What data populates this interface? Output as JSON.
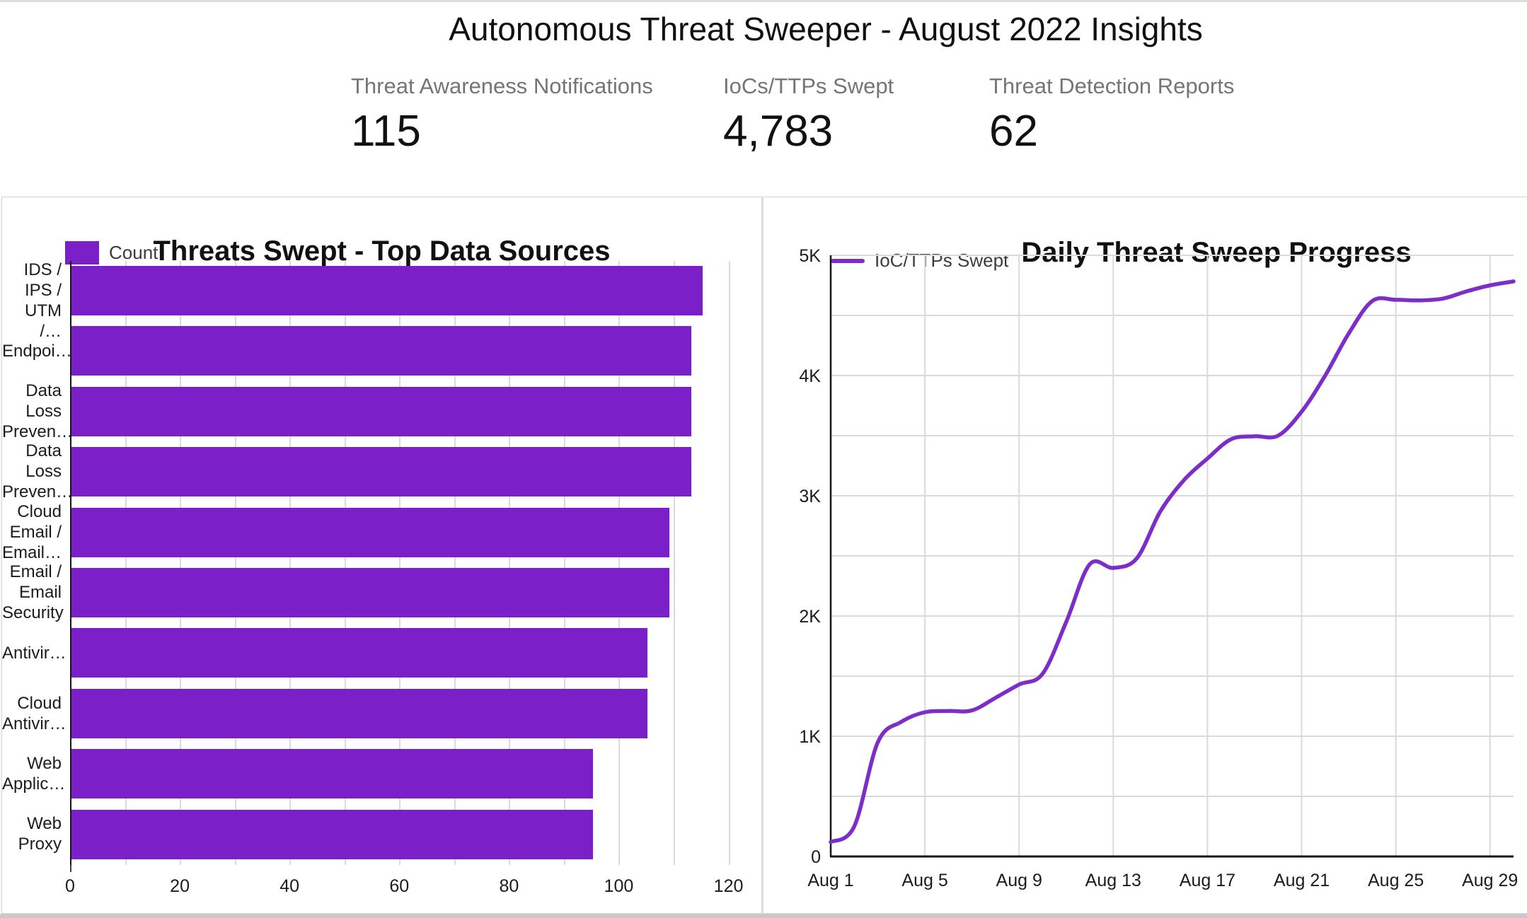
{
  "page": {
    "title": "Autonomous Threat Sweeper - August 2022 Insights"
  },
  "kpis": [
    {
      "label": "Threat Awareness Notifications",
      "value": "115"
    },
    {
      "label": "IoCs/TTPs Swept",
      "value": "4,783"
    },
    {
      "label": "Threat Detection Reports",
      "value": "62"
    }
  ],
  "colors": {
    "bar": "#7B1FC8",
    "line": "#7D2EC9",
    "grid": "#dadada",
    "axis": "#161616",
    "tick_label": "#1c1c1c",
    "kpi_label": "#757575",
    "card_border": "#d6d6d6",
    "top_strip": "#dcdcdc",
    "bottom_strip": "#c9c9c9"
  },
  "chart_data": [
    {
      "type": "bar",
      "orientation": "horizontal",
      "title": "Threats Swept - Top Data Sources",
      "legend": "Count",
      "color": "#7B1FC8",
      "grid": "on",
      "grid_step": 10,
      "x_axis_max": 123.8,
      "x_tick_labels": [
        "0",
        "20",
        "40",
        "60",
        "80",
        "100",
        "120"
      ],
      "x_tick_values": [
        0,
        20,
        40,
        60,
        80,
        100,
        120
      ],
      "categories": [
        "IDS / IPS / UTM /…",
        "Endpoi…",
        "Data Loss Preven…",
        "Data Loss Preven…",
        "Cloud Email / Email…",
        "Email / Email Security",
        "Antivir…",
        "Cloud Antivir…",
        "Web Applic…",
        "Web Proxy"
      ],
      "category_label_lines": [
        [
          "IDS /",
          "IPS /",
          "UTM /…"
        ],
        [
          "Endpoi…"
        ],
        [
          "Data",
          "Loss",
          "Preven…"
        ],
        [
          "Data",
          "Loss",
          "Preven…"
        ],
        [
          "Cloud",
          "Email /",
          "Email…"
        ],
        [
          "Email /",
          "Email",
          "Security"
        ],
        [
          "Antivir…"
        ],
        [
          "Cloud",
          "Antivir…"
        ],
        [
          "Web",
          "Applic…"
        ],
        [
          "Web",
          "Proxy"
        ]
      ],
      "values": [
        115,
        113,
        113,
        113,
        109,
        109,
        105,
        105,
        95,
        95
      ]
    },
    {
      "type": "line",
      "title": "Daily Threat Sweep Progress",
      "legend": "IoC/TTPs Swept",
      "color": "#7D2EC9",
      "grid": "on",
      "smooth": true,
      "ylim": [
        0,
        5000
      ],
      "y_grid_step": 500,
      "y_tick_labels": [
        "0",
        "1K",
        "2K",
        "3K",
        "4K",
        "5K"
      ],
      "y_tick_values": [
        0,
        1000,
        2000,
        3000,
        4000,
        5000
      ],
      "x_tick_labels": [
        "Aug 1",
        "Aug 5",
        "Aug 9",
        "Aug 13",
        "Aug 17",
        "Aug 21",
        "Aug 25",
        "Aug 29"
      ],
      "x_tick_day_step": 4,
      "x": [
        "Aug 1",
        "Aug 2",
        "Aug 3",
        "Aug 4",
        "Aug 5",
        "Aug 6",
        "Aug 7",
        "Aug 8",
        "Aug 9",
        "Aug 10",
        "Aug 11",
        "Aug 12",
        "Aug 13",
        "Aug 14",
        "Aug 15",
        "Aug 16",
        "Aug 17",
        "Aug 18",
        "Aug 19",
        "Aug 20",
        "Aug 21",
        "Aug 22",
        "Aug 23",
        "Aug 24",
        "Aug 25",
        "Aug 26",
        "Aug 27",
        "Aug 28",
        "Aug 29",
        "Aug 30"
      ],
      "series": [
        {
          "name": "IoC/TTPs Swept",
          "values": [
            120,
            250,
            950,
            1120,
            1200,
            1210,
            1215,
            1320,
            1430,
            1520,
            1950,
            2430,
            2400,
            2480,
            2870,
            3130,
            3310,
            3470,
            3495,
            3500,
            3700,
            4000,
            4350,
            4620,
            4630,
            4625,
            4640,
            4700,
            4750,
            4783
          ]
        }
      ]
    }
  ]
}
